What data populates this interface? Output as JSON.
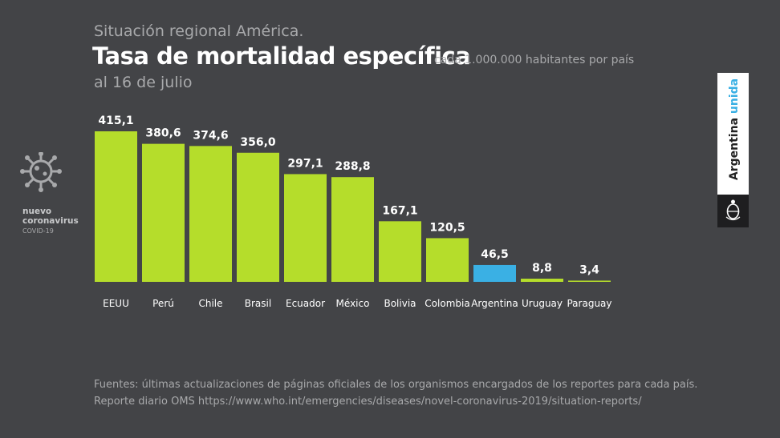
{
  "header": {
    "supertitle": "Situación regional América.",
    "title": "Tasa de mortalidad específica",
    "subtitle": "cada 1.000.000 habitantes por país",
    "date": "al 16 de julio"
  },
  "logo": {
    "line1": "nuevo",
    "line2": "coronavirus",
    "line3": "COVID-19",
    "icon": "virus-icon"
  },
  "badge": {
    "text_main": "Argentina",
    "text_accent": "unida",
    "icon": "coat-of-arms-icon"
  },
  "footer": {
    "line1": "Fuentes: últimas actualizaciones de páginas oficiales de los organismos encargados de los reportes para cada país.",
    "line2": "Reporte diario OMS https://www.who.int/emergencies/diseases/novel-coronavirus-2019/situation-reports/"
  },
  "colors": {
    "background": "#434447",
    "bar_default": "#b5dd2b",
    "bar_highlight": "#3ab0e4",
    "text": "#ffffff",
    "muted": "#a8a9ab"
  },
  "chart_data": {
    "type": "bar",
    "categories": [
      "EEUU",
      "Perú",
      "Chile",
      "Brasil",
      "Ecuador",
      "México",
      "Bolivia",
      "Colombia",
      "Argentina",
      "Uruguay",
      "Paraguay"
    ],
    "values": [
      415.1,
      380.6,
      374.6,
      356.0,
      297.1,
      288.8,
      167.1,
      120.5,
      46.5,
      8.8,
      3.4
    ],
    "value_labels": [
      "415,1",
      "380,6",
      "374,6",
      "356,0",
      "297,1",
      "288,8",
      "167,1",
      "120,5",
      "46,5",
      "8,8",
      "3,4"
    ],
    "highlight": "Argentina",
    "title": "Tasa de mortalidad específica",
    "xlabel": "",
    "ylabel": "",
    "ylim": [
      0,
      415.1
    ],
    "grid": false
  }
}
